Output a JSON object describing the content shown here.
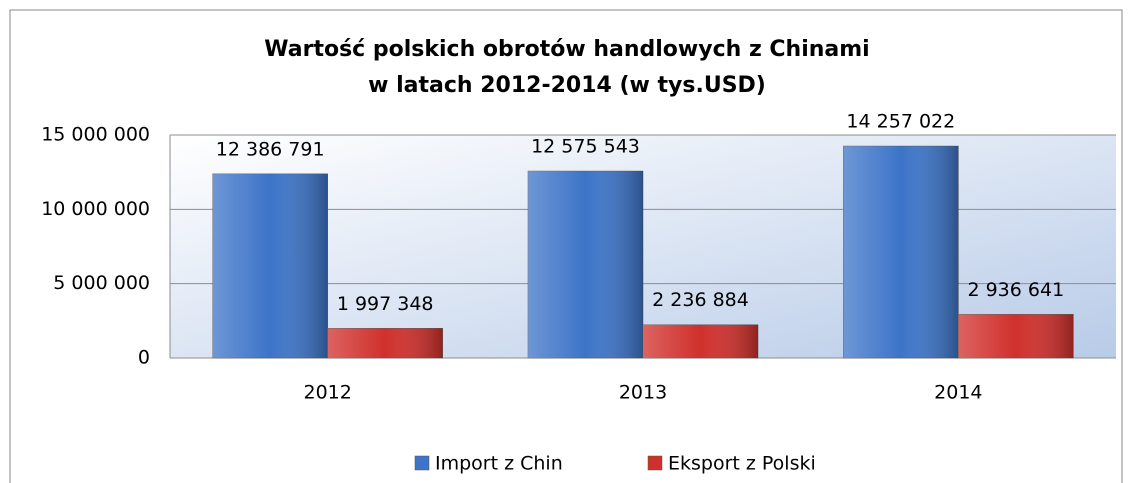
{
  "chart_data": {
    "type": "bar",
    "title": [
      "Wartość polskich obrotów handlowych z Chinami",
      "w latach 2012-2014 (w tys.USD)"
    ],
    "categories": [
      "2012",
      "2013",
      "2014"
    ],
    "series": [
      {
        "name": "Import z Chin",
        "color": "#3d74c8",
        "values": [
          12386791,
          12575543,
          14257022
        ],
        "value_labels": [
          "12 386 791",
          "12 575 543",
          "14 257 022"
        ]
      },
      {
        "name": "Eksport z Polski",
        "color": "#d0302c",
        "values": [
          1997348,
          2236884,
          2936641
        ],
        "value_labels": [
          "1 997 348",
          "2 236 884",
          "2 936 641"
        ]
      }
    ],
    "ylim": [
      0,
      15000000
    ],
    "yticks": [
      {
        "value": 0,
        "label": "0"
      },
      {
        "value": 5000000,
        "label": "5 000 000"
      },
      {
        "value": 10000000,
        "label": "10 000 000"
      },
      {
        "value": 15000000,
        "label": "15 000 000"
      }
    ],
    "grid": true,
    "legend": "bottom"
  }
}
